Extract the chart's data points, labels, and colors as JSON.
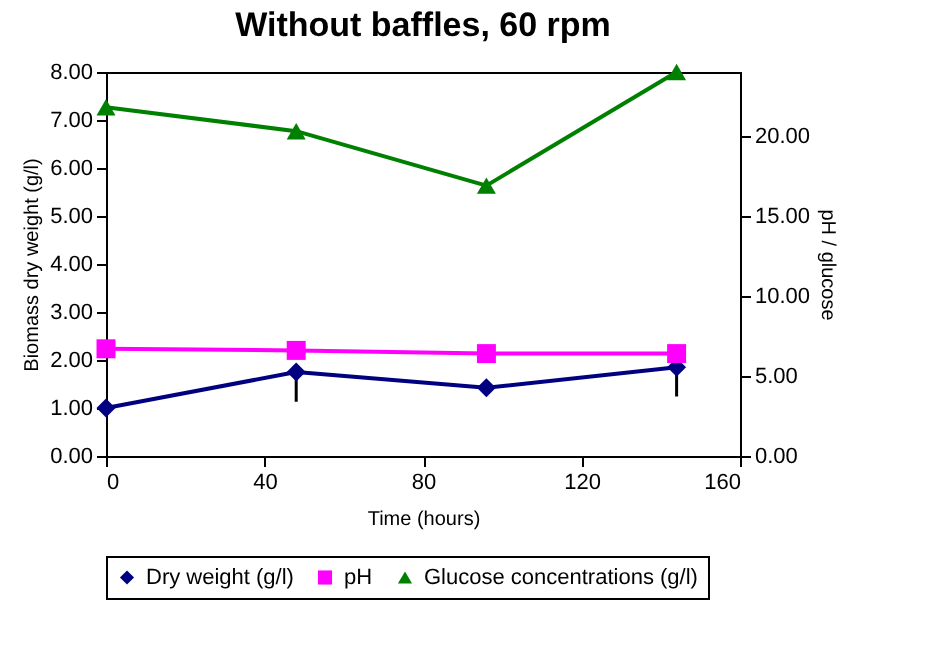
{
  "chart_data": {
    "type": "line",
    "title": "Without baffles, 60 rpm",
    "xlabel": "Time (hours)",
    "ylabel": "Biomass dry weight (g/l)",
    "y2label": "pH / glucose",
    "x": [
      0,
      48,
      96,
      144
    ],
    "xlim": [
      0,
      160
    ],
    "xticks": [
      0,
      40,
      80,
      120,
      160
    ],
    "ylim": [
      0,
      8
    ],
    "yticks": [
      {
        "value": 0,
        "label": "0.00"
      },
      {
        "value": 1,
        "label": "1.00"
      },
      {
        "value": 2,
        "label": "2.00"
      },
      {
        "value": 3,
        "label": "3.00"
      },
      {
        "value": 4,
        "label": "4.00"
      },
      {
        "value": 5,
        "label": "5.00"
      },
      {
        "value": 6,
        "label": "6.00"
      },
      {
        "value": 7,
        "label": "7.00"
      },
      {
        "value": 8,
        "label": "8.00"
      }
    ],
    "y2lim": [
      0,
      24
    ],
    "y2ticks": [
      {
        "value": 0,
        "label": "0.00"
      },
      {
        "value": 5,
        "label": "5.00"
      },
      {
        "value": 10,
        "label": "10.00"
      },
      {
        "value": 15,
        "label": "15.00"
      },
      {
        "value": 20,
        "label": "20.00"
      }
    ],
    "series": [
      {
        "name": "Dry weight (g/l)",
        "color": "#000080",
        "marker": "diamond",
        "values": [
          1.0,
          1.75,
          1.42,
          1.85
        ],
        "errors": [
          null,
          [
            1.13,
            1.75
          ],
          null,
          [
            1.24,
            1.85
          ]
        ]
      },
      {
        "name": "pH",
        "color": "#ff00ff",
        "marker": "square",
        "axis": "y2",
        "values": [
          6.7,
          6.6,
          6.4,
          6.4
        ]
      },
      {
        "name": "Glucose concentrations (g/l)",
        "color": "#008000",
        "marker": "triangle",
        "axis": "y2",
        "values": [
          21.8,
          20.3,
          16.9,
          24.0
        ]
      }
    ],
    "grid": false,
    "legend": "bottom"
  }
}
